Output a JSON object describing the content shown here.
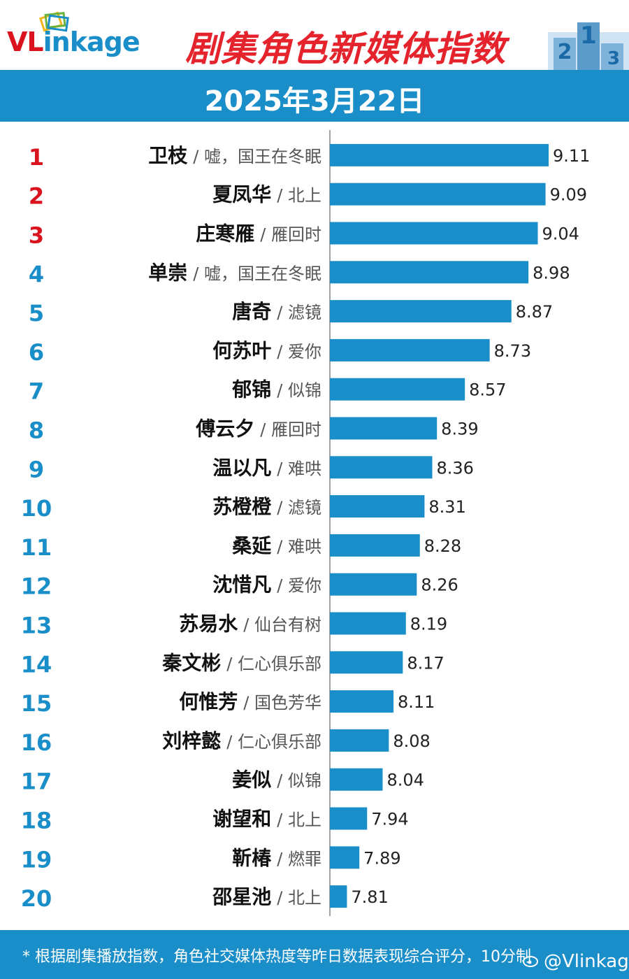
{
  "header": {
    "logo_text_v": "VL",
    "logo_text_rest": "inkage",
    "title": "剧集角色新媒体指数",
    "date": "2025年3月22日",
    "podium_digits": [
      "2",
      "1",
      "3"
    ]
  },
  "colors": {
    "accent": "#1a8ec8",
    "title_red": "#e5232d",
    "rank_top": "#d9141e",
    "rank_other": "#1a8ec8"
  },
  "chart_data": {
    "type": "bar",
    "orientation": "horizontal",
    "xlim": [
      0,
      10
    ],
    "categories": [
      {
        "rank": "1",
        "name": "卫枝",
        "show": "/ 嘘，国王在冬眠"
      },
      {
        "rank": "2",
        "name": "夏凤华",
        "show": "/ 北上"
      },
      {
        "rank": "3",
        "name": "庄寒雁",
        "show": "/ 雁回时"
      },
      {
        "rank": "4",
        "name": "单崇",
        "show": "/ 嘘，国王在冬眠"
      },
      {
        "rank": "5",
        "name": "唐奇",
        "show": "/ 滤镜"
      },
      {
        "rank": "6",
        "name": "何苏叶",
        "show": "/ 爱你"
      },
      {
        "rank": "7",
        "name": "郁锦",
        "show": "/ 似锦"
      },
      {
        "rank": "8",
        "name": "傅云夕",
        "show": "/ 雁回时"
      },
      {
        "rank": "9",
        "name": "温以凡",
        "show": "/ 难哄"
      },
      {
        "rank": "10",
        "name": "苏橙橙",
        "show": "/ 滤镜"
      },
      {
        "rank": "11",
        "name": "桑延",
        "show": "/ 难哄"
      },
      {
        "rank": "12",
        "name": "沈惜凡",
        "show": "/ 爱你"
      },
      {
        "rank": "13",
        "name": "苏易水",
        "show": "/ 仙台有树"
      },
      {
        "rank": "14",
        "name": "秦文彬",
        "show": "/ 仁心俱乐部"
      },
      {
        "rank": "15",
        "name": "何惟芳",
        "show": "/ 国色芳华"
      },
      {
        "rank": "16",
        "name": "刘梓懿",
        "show": "/ 仁心俱乐部"
      },
      {
        "rank": "17",
        "name": "姜似",
        "show": "/ 似锦"
      },
      {
        "rank": "18",
        "name": "谢望和",
        "show": "/ 北上"
      },
      {
        "rank": "19",
        "name": "靳椿",
        "show": "/ 燃罪"
      },
      {
        "rank": "20",
        "name": "邵星池",
        "show": "/ 北上"
      }
    ],
    "values": [
      9.11,
      9.09,
      9.04,
      8.98,
      8.87,
      8.73,
      8.57,
      8.39,
      8.36,
      8.31,
      8.28,
      8.26,
      8.19,
      8.17,
      8.11,
      8.08,
      8.04,
      7.94,
      7.89,
      7.81
    ],
    "value_labels": [
      "9.11",
      "9.09",
      "9.04",
      "8.98",
      "8.87",
      "8.73",
      "8.57",
      "8.39",
      "8.36",
      "8.31",
      "8.28",
      "8.26",
      "8.19",
      "8.17",
      "8.11",
      "8.08",
      "8.04",
      "7.94",
      "7.89",
      "7.81"
    ]
  },
  "footer": {
    "note": "* 根据剧集播放指数，角色社交媒体热度等昨日数据表现综合评分，10分制",
    "weibo_handle": "@Vlinkage"
  }
}
